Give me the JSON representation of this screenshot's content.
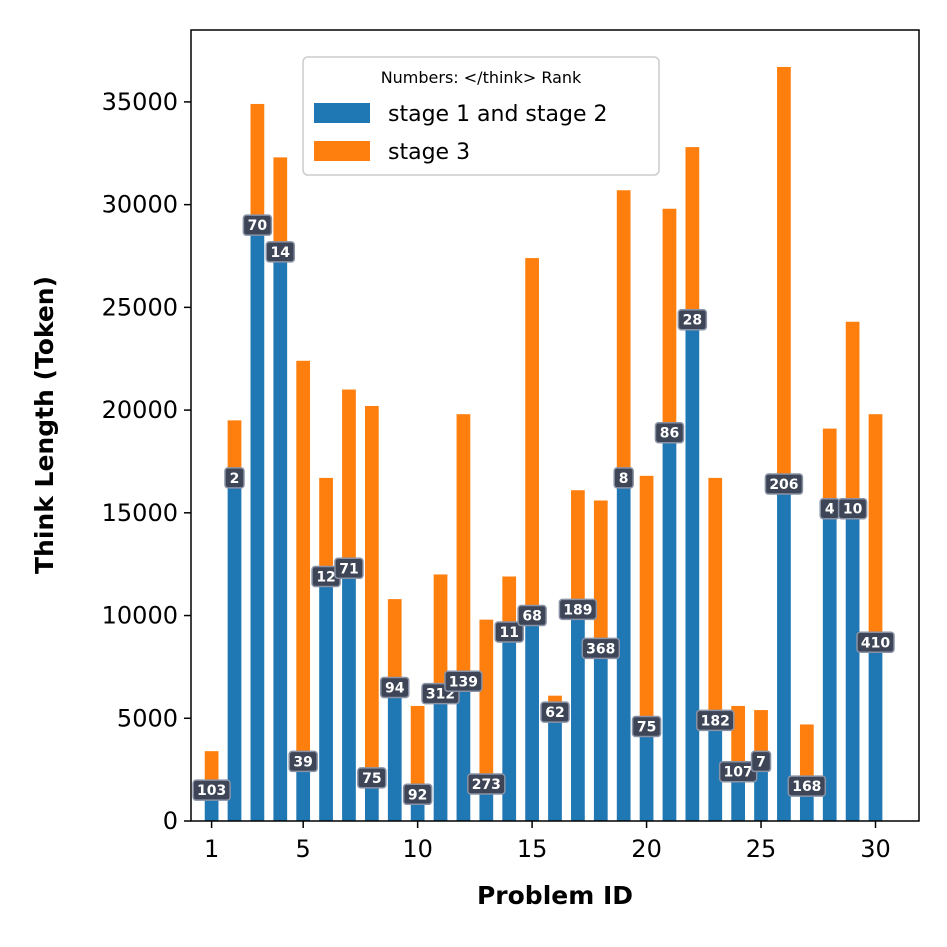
{
  "chart_data": {
    "type": "bar",
    "stacked": true,
    "xlabel": "Problem ID",
    "ylabel": "Think Length (Token)",
    "xlim": [
      0.1,
      31.9
    ],
    "ylim": [
      0,
      38500
    ],
    "xticks": [
      1,
      5,
      10,
      15,
      20,
      25,
      30
    ],
    "yticks": [
      0,
      5000,
      10000,
      15000,
      20000,
      25000,
      30000,
      35000
    ],
    "legend": {
      "title": "Numbers: </think> Rank",
      "position": "upper-center"
    },
    "categories": [
      1,
      2,
      3,
      4,
      5,
      6,
      7,
      8,
      9,
      10,
      11,
      12,
      13,
      14,
      15,
      16,
      17,
      18,
      19,
      20,
      21,
      22,
      23,
      24,
      25,
      26,
      27,
      28,
      29,
      30
    ],
    "series": [
      {
        "name": "stage 1 and stage 2",
        "color": "#1f77b4",
        "values": [
          1500,
          16700,
          29000,
          27700,
          2900,
          11900,
          12300,
          2100,
          6500,
          1300,
          6200,
          6800,
          1800,
          9200,
          10000,
          5300,
          10300,
          8400,
          16700,
          4600,
          18900,
          24400,
          4900,
          2400,
          2900,
          16400,
          1700,
          15200,
          15200,
          8700
        ]
      },
      {
        "name": "stage 3",
        "color": "#ff7f0e",
        "values": [
          1900,
          2800,
          5900,
          4600,
          19500,
          4800,
          8700,
          18100,
          4300,
          4300,
          5800,
          13000,
          8000,
          2700,
          17400,
          800,
          5800,
          7200,
          14000,
          12200,
          10900,
          8400,
          11800,
          3200,
          2500,
          20300,
          3000,
          3900,
          9100,
          11100
        ]
      }
    ],
    "rank_labels": [
      "103",
      "2",
      "70",
      "14",
      "39",
      "12",
      "71",
      "75",
      "94",
      "92",
      "312",
      "139",
      "273",
      "11",
      "68",
      "62",
      "189",
      "368",
      "8",
      "75",
      "86",
      "28",
      "182",
      "107",
      "7",
      "206",
      "168",
      "4",
      "10",
      "410"
    ]
  }
}
